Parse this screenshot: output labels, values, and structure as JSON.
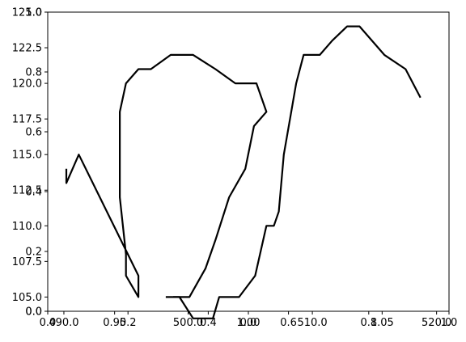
{
  "chart_data": {
    "type": "line",
    "title": "",
    "xlabel": "",
    "ylabel": "",
    "grid": false,
    "legend": "none",
    "line_color": "#000000",
    "background_color": "#ffffff",
    "axes": [
      {
        "name": "axis-main",
        "xlim": [
          488.7,
          521.0
        ],
        "ylim": [
          104.0,
          125.0
        ],
        "xticks": [
          490.0,
          500.0,
          510.0,
          520.0
        ],
        "xticklabels": [
          "490.0",
          "500.0",
          "510.0",
          "520.0"
        ],
        "yticks": [
          105.0,
          107.5,
          110.0,
          112.5,
          115.0,
          117.5,
          120.0,
          122.5,
          125.0
        ],
        "yticklabels": [
          "105.0",
          "107.5",
          "110.0",
          "112.5",
          "115.0",
          "117.5",
          "120.0",
          "122.5",
          "125.0"
        ]
      },
      {
        "name": "axis-overlay-a",
        "xlim": [
          0.0,
          1.0
        ],
        "ylim": [
          0.0,
          1.0
        ],
        "xticks": [
          0.0,
          0.2,
          0.4,
          0.6,
          0.8,
          1.0
        ],
        "xticklabels": [
          "0.0",
          "0.2",
          "0.4",
          "0.6",
          "0.8",
          "1.0"
        ],
        "yticks": [
          0.0,
          0.2,
          0.4,
          0.6,
          0.8,
          1.0
        ],
        "yticklabels": [
          "0.0",
          "0.2",
          "0.4",
          "0.6",
          "0.8",
          "1.0"
        ]
      },
      {
        "name": "axis-overlay-b",
        "xlim": [
          0.925,
          1.075
        ],
        "ylim": [
          0.0,
          1.0
        ],
        "xticks": [
          0.95,
          1.0,
          1.05
        ],
        "xticklabels": [
          "0.95",
          "1.00",
          "1.05"
        ],
        "yticks": [
          1.0
        ],
        "yticklabels": [
          "1.0"
        ]
      },
      {
        "name": "axis-overlay-c",
        "xlim": [
          -0.05,
          0.05
        ],
        "ylim": [
          0.0,
          1.0
        ],
        "xticks": [
          0.0
        ],
        "xticklabels": [
          "0.0"
        ],
        "yticks": [
          0.0
        ],
        "yticklabels": [
          "0.0"
        ]
      }
    ],
    "series": [
      {
        "x": [
          490.2,
          490.2,
          491.2,
          496.0,
          496.0,
          495.0,
          495.0,
          494.5,
          494.5,
          494.5,
          495.0,
          496.0,
          497.0,
          498.6,
          500.4,
          502.2,
          503.8,
          505.5,
          506.3,
          506.3,
          505.3,
          504.6,
          503.3,
          502.2,
          501.4,
          500.1,
          498.8
        ],
        "y": [
          114.0,
          113.0,
          115.0,
          106.5,
          105.0,
          106.5,
          108.0,
          112.0,
          118.0,
          118.0,
          120.0,
          121.0,
          121.0,
          122.0,
          122.0,
          121.0,
          120.0,
          120.0,
          118.0,
          118.0,
          117.0,
          114.0,
          112.0,
          109.0,
          107.0,
          105.0,
          105.0
        ]
      },
      {
        "x": [
          498.2,
          498.2,
          499.3,
          500.4,
          501.3,
          502.0,
          502.5,
          503.0,
          503.5,
          504.1,
          505.4,
          506.3,
          506.9,
          507.3,
          507.7,
          508.3,
          508.7,
          509.3,
          510.6,
          511.6,
          512.8,
          513.8,
          515.8,
          517.5,
          518.7
        ],
        "y": [
          105.0,
          105.0,
          105.0,
          103.5,
          103.5,
          103.5,
          105.0,
          105.0,
          105.0,
          105.0,
          106.5,
          110.0,
          110.0,
          111.0,
          115.0,
          118.0,
          120.0,
          122.0,
          122.0,
          123.0,
          124.0,
          124.0,
          122.0,
          121.0,
          119.0
        ]
      }
    ]
  }
}
